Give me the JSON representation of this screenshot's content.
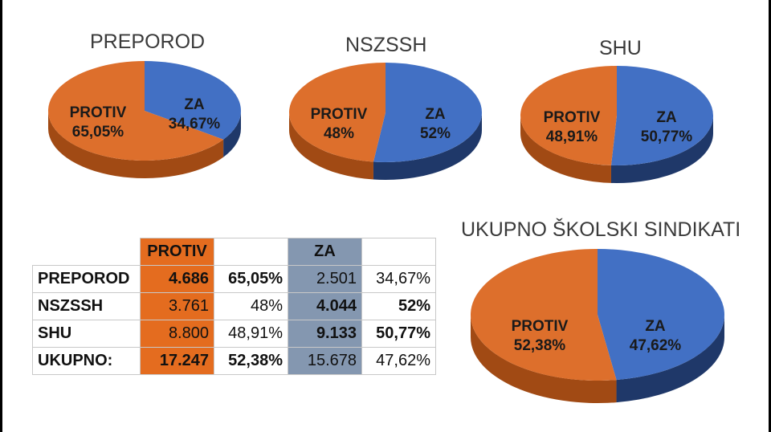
{
  "colors": {
    "protiv": "#dd6f2c",
    "protiv_dark": "#a14a14",
    "za": "#4270c4",
    "za_dark": "#1f3869",
    "table_protiv": "#e46c1f",
    "table_za": "#8497b0"
  },
  "chart_data": [
    {
      "type": "pie",
      "title": "PREPOROD",
      "slices": [
        {
          "label": "ZA",
          "value": 34.67,
          "display": "34,67%"
        },
        {
          "label": "PROTIV",
          "value": 65.05,
          "display": "65,05%"
        }
      ]
    },
    {
      "type": "pie",
      "title": "NSZSSH",
      "slices": [
        {
          "label": "ZA",
          "value": 52,
          "display": "52%"
        },
        {
          "label": "PROTIV",
          "value": 48,
          "display": "48%"
        }
      ]
    },
    {
      "type": "pie",
      "title": "SHU",
      "slices": [
        {
          "label": "ZA",
          "value": 50.77,
          "display": "50,77%"
        },
        {
          "label": "PROTIV",
          "value": 48.91,
          "display": "48,91%"
        }
      ]
    },
    {
      "type": "pie",
      "title": "UKUPNO ŠKOLSKI SINDIKATI",
      "slices": [
        {
          "label": "ZA",
          "value": 47.62,
          "display": "47,62%"
        },
        {
          "label": "PROTIV",
          "value": 52.38,
          "display": "52,38%"
        }
      ]
    },
    {
      "type": "table",
      "headers": [
        "",
        "PROTIV",
        "",
        "ZA",
        ""
      ],
      "rows": [
        [
          "PREPOROD",
          "4.686",
          "65,05%",
          "2.501",
          "34,67%"
        ],
        [
          "NSZSSH",
          "3.761",
          "48%",
          "4.044",
          "52%"
        ],
        [
          "SHU",
          "8.800",
          "48,91%",
          "9.133",
          "50,77%"
        ],
        [
          "UKUPNO:",
          "17.247",
          "52,38%",
          "15.678",
          "47,62%"
        ]
      ]
    }
  ]
}
